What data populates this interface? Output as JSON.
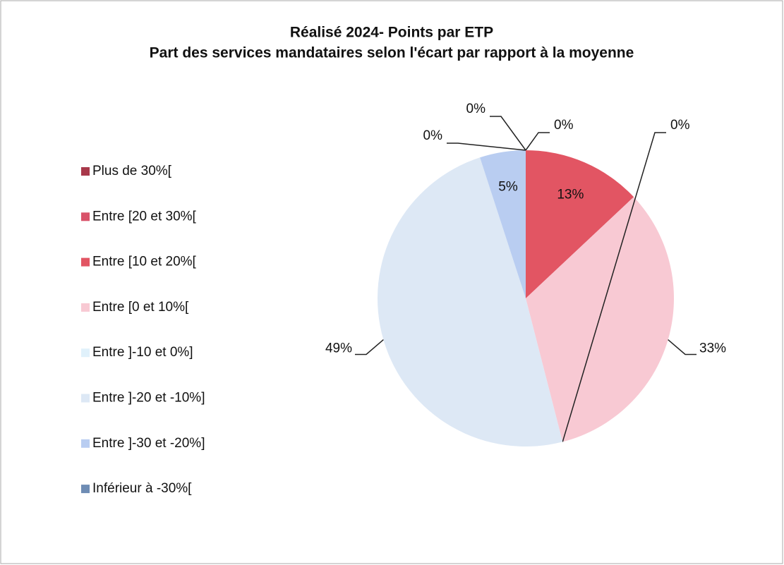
{
  "chart_data": {
    "type": "pie",
    "title": "Réalisé 2024- Points par ETP",
    "subtitle": "Part des services mandataires selon l'écart par rapport à la moyenne",
    "categories": [
      "Plus de 30%[",
      "Entre [20 et 30%[",
      "Entre [10 et 20%[",
      "Entre [0 et 10%[",
      "Entre ]-10 et 0%]",
      "Entre ]-20 et -10%]",
      "Entre ]-30 et -20%]",
      "Inférieur à -30%["
    ],
    "values": [
      0,
      0,
      13,
      33,
      0,
      49,
      5,
      0
    ],
    "value_labels": [
      "0%",
      "0%",
      "13%",
      "33%",
      "0%",
      "49%",
      "5%",
      "0%"
    ],
    "colors": [
      "#a8384a",
      "#d9536a",
      "#e25563",
      "#f8c9d3",
      "#e0f1fb",
      "#dde8f5",
      "#b9cdf1",
      "#6e8cb4"
    ],
    "legend": "left"
  }
}
